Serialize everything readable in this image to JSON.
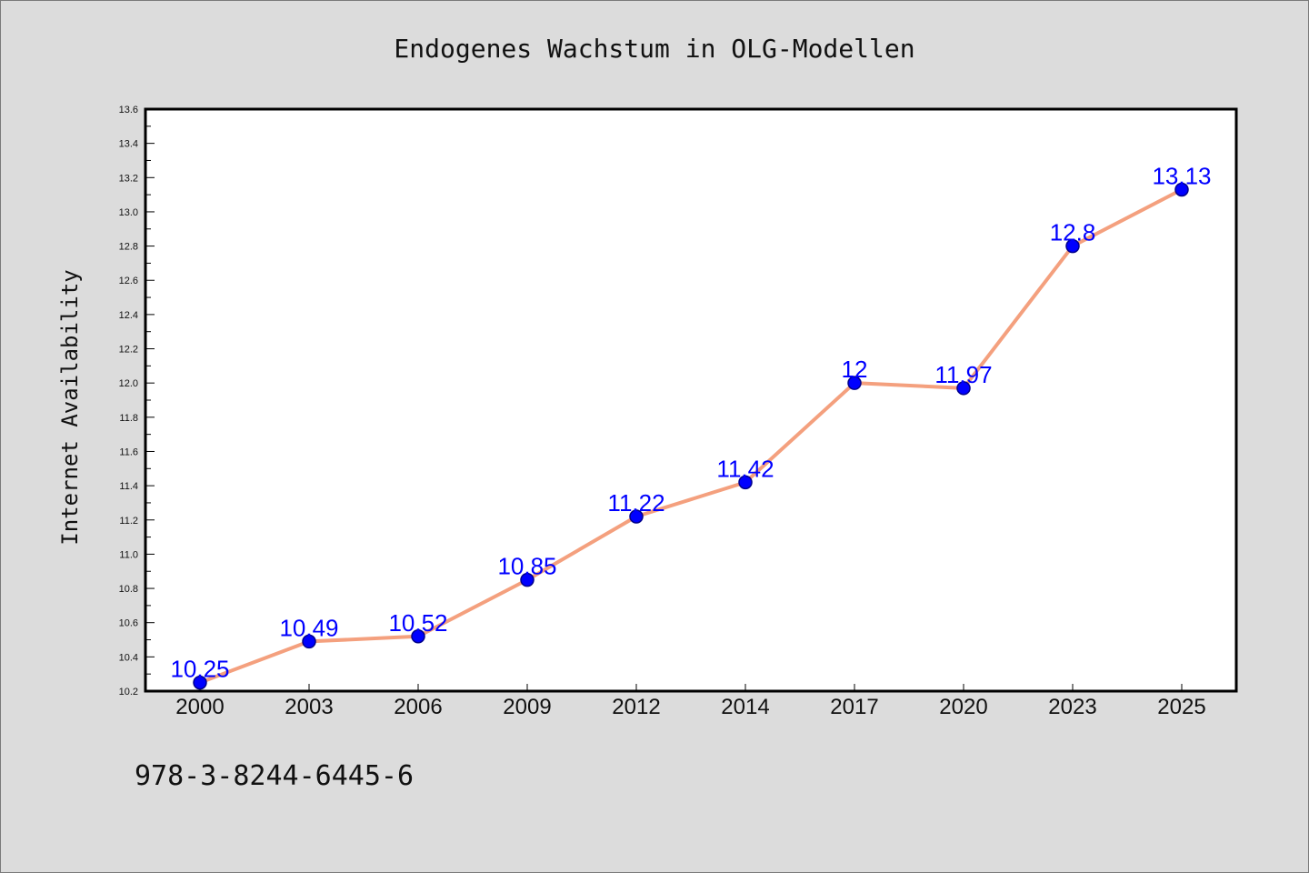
{
  "chart_data": {
    "type": "line",
    "title": "Endogenes Wachstum in OLG-Modellen",
    "xlabel": "",
    "ylabel": "Internet Availability",
    "categories": [
      "2000",
      "2003",
      "2006",
      "2009",
      "2012",
      "2014",
      "2017",
      "2020",
      "2023",
      "2025"
    ],
    "series": [
      {
        "values": [
          10.25,
          10.49,
          10.52,
          10.85,
          11.22,
          11.42,
          12.0,
          11.97,
          12.8,
          13.13
        ],
        "data_labels": [
          "10.25",
          "10.49",
          "10.52",
          "10.85",
          "11.22",
          "11.42",
          "12",
          "11.97",
          "12.8",
          "13.13"
        ]
      }
    ],
    "ylim": [
      10.2,
      13.6
    ],
    "yticks": [
      "10.2",
      "10.4",
      "10.6",
      "10.8",
      "11.0",
      "11.2",
      "11.4",
      "11.6",
      "11.8",
      "12.0",
      "12.2",
      "12.4",
      "12.6",
      "12.8",
      "13.0",
      "13.2",
      "13.4",
      "13.6"
    ],
    "grid": false,
    "colors": {
      "line": "#f4a07e",
      "marker": "#0000ff",
      "marker_edge": "#00008b",
      "data_label": "#0000ff",
      "plot_background": "#ffffff",
      "figure_background": "#dcdcdc"
    }
  },
  "footer": {
    "isbn": "978-3-8244-6445-6"
  }
}
